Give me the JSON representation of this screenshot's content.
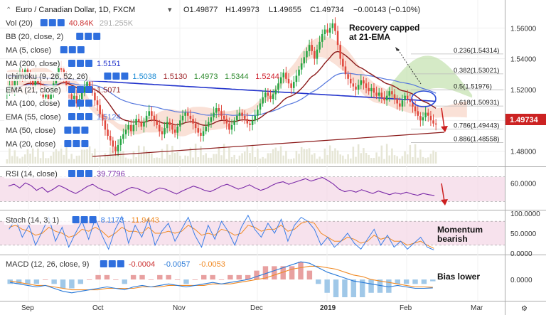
{
  "header": {
    "symbol": "Euro / Canadian Dollar, 1D, FXCM",
    "open": "O1.49877",
    "high": "H1.49973",
    "low": "L1.49655",
    "close": "C1.49734",
    "change": "−0.00143 (−0.10%)"
  },
  "indicators": {
    "vol": {
      "label": "Vol (20)",
      "v1": "40.84K",
      "v2": "291.255K"
    },
    "bb": {
      "label": "BB (20, close, 2)"
    },
    "ma5": {
      "label": "MA (5, close)"
    },
    "ma200": {
      "label": "MA (200, close)",
      "v1": "1.5151"
    },
    "ichimoku": {
      "label": "Ichimoku (9, 26, 52, 26)",
      "v1": "1.5038",
      "v2": "1.5130",
      "v3": "1.4973",
      "v4": "1.5344",
      "v5": "1.5244"
    },
    "ema21": {
      "label": "EMA (21, close)",
      "v1": "1.5071"
    },
    "ma100": {
      "label": "MA (100, close)"
    },
    "ema55": {
      "label": "EMA (55, close)",
      "v1": "1.5124"
    },
    "ma50": {
      "label": "MA (50, close)"
    },
    "ma20": {
      "label": "MA (20, close)"
    },
    "rsi": {
      "label": "RSI (14, close)",
      "v1": "39.7796"
    },
    "stoch": {
      "label": "Stoch (14, 3, 1)",
      "v1": "8.1173",
      "v2": "11.9443"
    },
    "macd": {
      "label": "MACD (12, 26, close, 9)",
      "v1": "-0.0004",
      "v2": "-0.0057",
      "v3": "-0.0053"
    }
  },
  "annotations": {
    "recovery_line1": "Recovery capped",
    "recovery_line2": "at 21-EMA",
    "momentum_line1": "Momentum",
    "momentum_line2": "bearish",
    "bias": "Bias lower"
  },
  "price_tag": "1.49734",
  "colors": {
    "up": "#26a644",
    "down": "#e0483c",
    "ma200": "#2233cc",
    "ema21": "#8b1a1a",
    "ema55": "#5577dd",
    "rsi": "#7b2aa8",
    "stoch_k": "#3a7ee8",
    "stoch_d": "#f08a24",
    "macd": "#2a7ad8",
    "signal": "#f08a24",
    "arrow": "#cc1f1f",
    "price_tag_bg": "#cc2222"
  },
  "chart_data": [
    {
      "type": "candlestick",
      "x_ticks": [
        "Sep",
        "Oct",
        "Nov",
        "Dec",
        "2019",
        "Feb",
        "Mar"
      ],
      "y_ticks": [
        1.48,
        1.5,
        1.52,
        1.54,
        1.56
      ],
      "ylim": [
        1.472,
        1.568
      ],
      "last_close": 1.49734,
      "fib_levels": [
        {
          "label": "0.236(1.54314)",
          "value": 1.54314
        },
        {
          "label": "0.382(1.53021)",
          "value": 1.53021
        },
        {
          "label": "0.5(1.51976)",
          "value": 1.51976
        },
        {
          "label": "0.618(1.50931)",
          "value": 1.50931
        },
        {
          "label": "0.786(1.49443)",
          "value": 1.49443
        },
        {
          "label": "0.886(1.48558)",
          "value": 1.48558
        }
      ],
      "closes": [
        1.519,
        1.523,
        1.52,
        1.526,
        1.528,
        1.531,
        1.529,
        1.533,
        1.53,
        1.526,
        1.522,
        1.527,
        1.524,
        1.52,
        1.515,
        1.517,
        1.513,
        1.518,
        1.524,
        1.529,
        1.535,
        1.533,
        1.528,
        1.522,
        1.517,
        1.514,
        1.516,
        1.511,
        1.514,
        1.518,
        1.522,
        1.525,
        1.522,
        1.518,
        1.513,
        1.51,
        1.504,
        1.5,
        1.494,
        1.49,
        1.487,
        1.483,
        1.48,
        1.484,
        1.488,
        1.491,
        1.494,
        1.497,
        1.493,
        1.497,
        1.501,
        1.499,
        1.496,
        1.499,
        1.503,
        1.506,
        1.503,
        1.5,
        1.497,
        1.493,
        1.491,
        1.495,
        1.499,
        1.497,
        1.494,
        1.492,
        1.496,
        1.5,
        1.503,
        1.505,
        1.503,
        1.501,
        1.498,
        1.495,
        1.492,
        1.49,
        1.493,
        1.496,
        1.499,
        1.502,
        1.505,
        1.508,
        1.506,
        1.503,
        1.501,
        1.498,
        1.494,
        1.497,
        1.5,
        1.503,
        1.505,
        1.503,
        1.501,
        1.498,
        1.497,
        1.5,
        1.503,
        1.507,
        1.511,
        1.515,
        1.518,
        1.516,
        1.514,
        1.517,
        1.52,
        1.524,
        1.528,
        1.531,
        1.527,
        1.524,
        1.521,
        1.525,
        1.529,
        1.533,
        1.537,
        1.541,
        1.545,
        1.549,
        1.545,
        1.54,
        1.546,
        1.551,
        1.556,
        1.559,
        1.557,
        1.56,
        1.563,
        1.558,
        1.549,
        1.54,
        1.535,
        1.53,
        1.527,
        1.524,
        1.522,
        1.52,
        1.523,
        1.526,
        1.524,
        1.521,
        1.519,
        1.521,
        1.518,
        1.516,
        1.518,
        1.515,
        1.513,
        1.516,
        1.519,
        1.517,
        1.514,
        1.511,
        1.509,
        1.513,
        1.516,
        1.514,
        1.512,
        1.509,
        1.506,
        1.503,
        1.5,
        1.502,
        1.505,
        1.503,
        1.5,
        1.498,
        1.49734
      ],
      "volume_scale": "291.255K"
    },
    {
      "type": "line",
      "name": "RSI (14, close)",
      "ylim": [
        20,
        80
      ],
      "y_ticks": [
        60
      ],
      "bands": [
        30,
        70
      ],
      "last": 39.7796,
      "values": [
        55,
        58,
        52,
        60,
        56,
        48,
        53,
        45,
        50,
        56,
        52,
        47,
        43,
        48,
        54,
        58,
        52,
        48,
        46,
        40,
        44,
        49,
        53,
        51,
        47,
        43,
        48,
        52,
        50,
        46,
        42,
        47,
        51,
        55,
        52,
        48,
        46,
        50,
        55,
        58,
        54,
        50,
        53,
        57,
        52,
        48,
        51,
        56,
        60,
        62,
        58,
        61,
        64,
        67,
        63,
        66,
        69,
        64,
        58,
        50,
        46,
        48,
        45,
        49,
        46,
        43,
        47,
        44,
        41,
        44,
        42,
        45,
        42,
        40,
        43,
        41,
        39.78
      ]
    },
    {
      "type": "line",
      "name": "Stoch (14, 3, 1)",
      "ylim": [
        0,
        100
      ],
      "y_ticks": [
        0,
        50,
        100
      ],
      "bands": [
        20,
        80
      ],
      "k": [
        60,
        85,
        40,
        70,
        20,
        55,
        90,
        30,
        65,
        15,
        50,
        80,
        35,
        88,
        45,
        10,
        60,
        92,
        25,
        70,
        40,
        85,
        20,
        55,
        75,
        30,
        60,
        90,
        45,
        15,
        70,
        35,
        80,
        55,
        20,
        65,
        95,
        60,
        40,
        75,
        50,
        85,
        30,
        70,
        90,
        80,
        60,
        20,
        40,
        15,
        30,
        50,
        25,
        10,
        35,
        60,
        20,
        45,
        15,
        30,
        10,
        25,
        40,
        15,
        8
      ],
      "d": [
        65,
        70,
        60,
        55,
        45,
        50,
        65,
        55,
        50,
        40,
        45,
        60,
        55,
        65,
        55,
        40,
        50,
        65,
        55,
        55,
        50,
        65,
        50,
        50,
        55,
        50,
        55,
        70,
        60,
        45,
        50,
        45,
        60,
        55,
        45,
        50,
        70,
        65,
        55,
        60,
        60,
        70,
        55,
        60,
        75,
        80,
        75,
        50,
        40,
        30,
        30,
        40,
        35,
        25,
        30,
        45,
        35,
        40,
        30,
        30,
        20,
        25,
        30,
        20,
        12
      ]
    },
    {
      "type": "line",
      "name": "MACD (12, 26, close, 9)",
      "y_ticks": [
        0
      ],
      "ylim": [
        -0.012,
        0.014
      ],
      "macd": [
        -0.002,
        -0.003,
        -0.004,
        -0.005,
        -0.004,
        -0.006,
        -0.008,
        -0.009,
        -0.008,
        -0.007,
        -0.006,
        -0.005,
        -0.006,
        -0.007,
        -0.005,
        -0.004,
        -0.005,
        -0.004,
        -0.003,
        -0.004,
        -0.005,
        -0.004,
        -0.003,
        -0.002,
        -0.003,
        -0.002,
        -0.001,
        0.0,
        0.002,
        0.004,
        0.006,
        0.008,
        0.01,
        0.012,
        0.011,
        0.008,
        0.005,
        0.003,
        0.001,
        -0.001,
        -0.002,
        -0.003,
        -0.004,
        -0.005,
        -0.004,
        -0.005,
        -0.006,
        -0.006,
        -0.0057
      ],
      "signal": [
        -0.001,
        -0.002,
        -0.003,
        -0.004,
        -0.004,
        -0.005,
        -0.006,
        -0.007,
        -0.007,
        -0.007,
        -0.007,
        -0.006,
        -0.006,
        -0.006,
        -0.006,
        -0.005,
        -0.005,
        -0.005,
        -0.004,
        -0.004,
        -0.004,
        -0.004,
        -0.004,
        -0.003,
        -0.003,
        -0.003,
        -0.002,
        -0.001,
        0.0,
        0.001,
        0.003,
        0.005,
        0.007,
        0.008,
        0.009,
        0.009,
        0.008,
        0.007,
        0.005,
        0.003,
        0.002,
        0.0,
        -0.001,
        -0.002,
        -0.003,
        -0.004,
        -0.005,
        -0.005,
        -0.0053
      ],
      "last_hist": -0.0004
    }
  ]
}
